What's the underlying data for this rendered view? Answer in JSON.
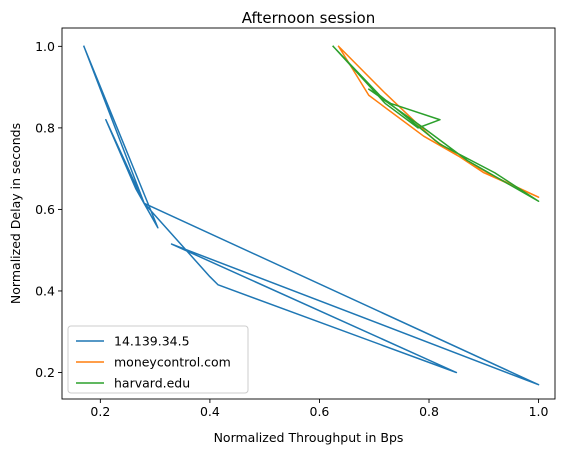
{
  "chart_data": {
    "type": "line",
    "title": "Afternoon session",
    "xlabel": "Normalized Throughput in Bps",
    "ylabel": "Normalized Delay in seconds",
    "xlim": [
      0.13,
      1.03
    ],
    "ylim": [
      0.135,
      1.045
    ],
    "xticks": [
      0.2,
      0.4,
      0.6,
      0.8,
      1.0
    ],
    "xtick_labels": [
      "0.2",
      "0.4",
      "0.6",
      "0.8",
      "1.0"
    ],
    "yticks": [
      0.2,
      0.4,
      0.6,
      0.8,
      1.0
    ],
    "ytick_labels": [
      "0.2",
      "0.4",
      "0.6",
      "0.8",
      "1.0"
    ],
    "grid": false,
    "legend_position": "lower-left",
    "series": [
      {
        "name": "14.139.34.5",
        "color": "#1f77b4",
        "points": [
          [
            0.17,
            1.0
          ],
          [
            0.305,
            0.555
          ],
          [
            0.265,
            0.65
          ],
          [
            0.21,
            0.82
          ],
          [
            0.28,
            0.615
          ],
          [
            1.0,
            0.17
          ],
          [
            0.33,
            0.515
          ],
          [
            0.85,
            0.2
          ],
          [
            0.415,
            0.415
          ],
          [
            0.4,
            0.435
          ],
          [
            0.28,
            0.615
          ],
          [
            0.17,
            1.0
          ]
        ]
      },
      {
        "name": "moneycontrol.com",
        "color": "#ff7f0e",
        "points": [
          [
            0.635,
            1.0
          ],
          [
            0.72,
            0.885
          ],
          [
            0.81,
            0.77
          ],
          [
            0.9,
            0.69
          ],
          [
            1.0,
            0.63
          ],
          [
            0.92,
            0.68
          ],
          [
            0.79,
            0.78
          ],
          [
            0.69,
            0.88
          ],
          [
            0.635,
            1.0
          ]
        ]
      },
      {
        "name": "harvard.edu",
        "color": "#2ca02c",
        "points": [
          [
            0.625,
            1.0
          ],
          [
            0.71,
            0.88
          ],
          [
            0.82,
            0.76
          ],
          [
            0.92,
            0.69
          ],
          [
            1.0,
            0.62
          ],
          [
            0.87,
            0.72
          ],
          [
            0.79,
            0.8
          ],
          [
            0.69,
            0.895
          ],
          [
            0.73,
            0.86
          ],
          [
            0.82,
            0.82
          ],
          [
            0.78,
            0.8
          ],
          [
            0.72,
            0.86
          ],
          [
            0.625,
            1.0
          ]
        ]
      }
    ]
  }
}
